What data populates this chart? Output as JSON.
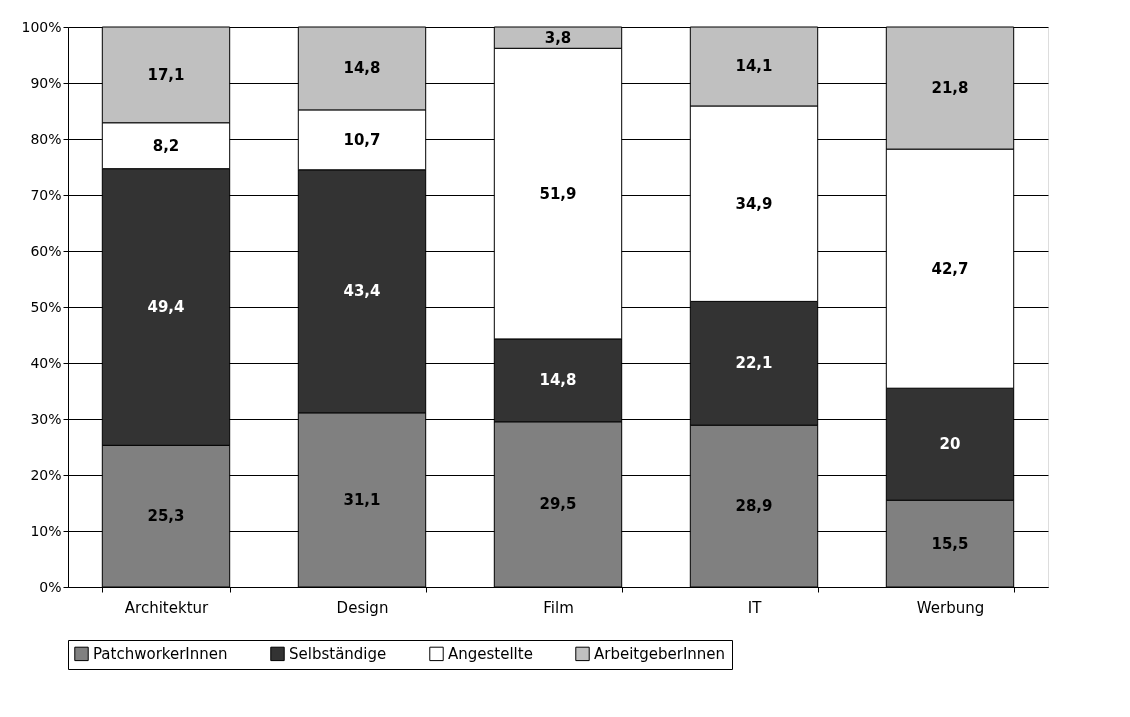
{
  "chart_data": {
    "type": "bar",
    "stacked": true,
    "categories": [
      "Architektur",
      "Design",
      "Film",
      "IT",
      "Werbung"
    ],
    "series": [
      {
        "name": "PatchworkerInnen",
        "color": "#808080",
        "values": [
          25.3,
          31.1,
          29.5,
          28.9,
          15.5
        ],
        "value_labels": [
          "25,3",
          "31,1",
          "29,5",
          "28,9",
          "15,5"
        ]
      },
      {
        "name": "Selbständige",
        "color": "#333333",
        "values": [
          49.4,
          43.4,
          14.8,
          22.1,
          20
        ],
        "value_labels": [
          "49,4",
          "43,4",
          "14,8",
          "22,1",
          "20"
        ]
      },
      {
        "name": "Angestellte",
        "color": "#ffffff",
        "values": [
          8.2,
          10.7,
          51.9,
          34.9,
          42.7
        ],
        "value_labels": [
          "8,2",
          "10,7",
          "51,9",
          "34,9",
          "42,7"
        ]
      },
      {
        "name": "ArbeitgeberInnen",
        "color": "#c0c0c0",
        "values": [
          17.1,
          14.8,
          3.8,
          14.1,
          21.8
        ],
        "value_labels": [
          "17,1",
          "14,8",
          "3,8",
          "14,1",
          "21,8"
        ]
      }
    ],
    "ylim": [
      0,
      100
    ],
    "yticks": [
      {
        "value": 0,
        "label": "0%"
      },
      {
        "value": 10,
        "label": "10%"
      },
      {
        "value": 20,
        "label": "20%"
      },
      {
        "value": 30,
        "label": "30%"
      },
      {
        "value": 40,
        "label": "40%"
      },
      {
        "value": 50,
        "label": "50%"
      },
      {
        "value": 60,
        "label": "60%"
      },
      {
        "value": 70,
        "label": "70%"
      },
      {
        "value": 80,
        "label": "80%"
      },
      {
        "value": 90,
        "label": "90%"
      },
      {
        "value": 100,
        "label": "100%"
      }
    ],
    "grid": "y",
    "legend": "bottom"
  }
}
